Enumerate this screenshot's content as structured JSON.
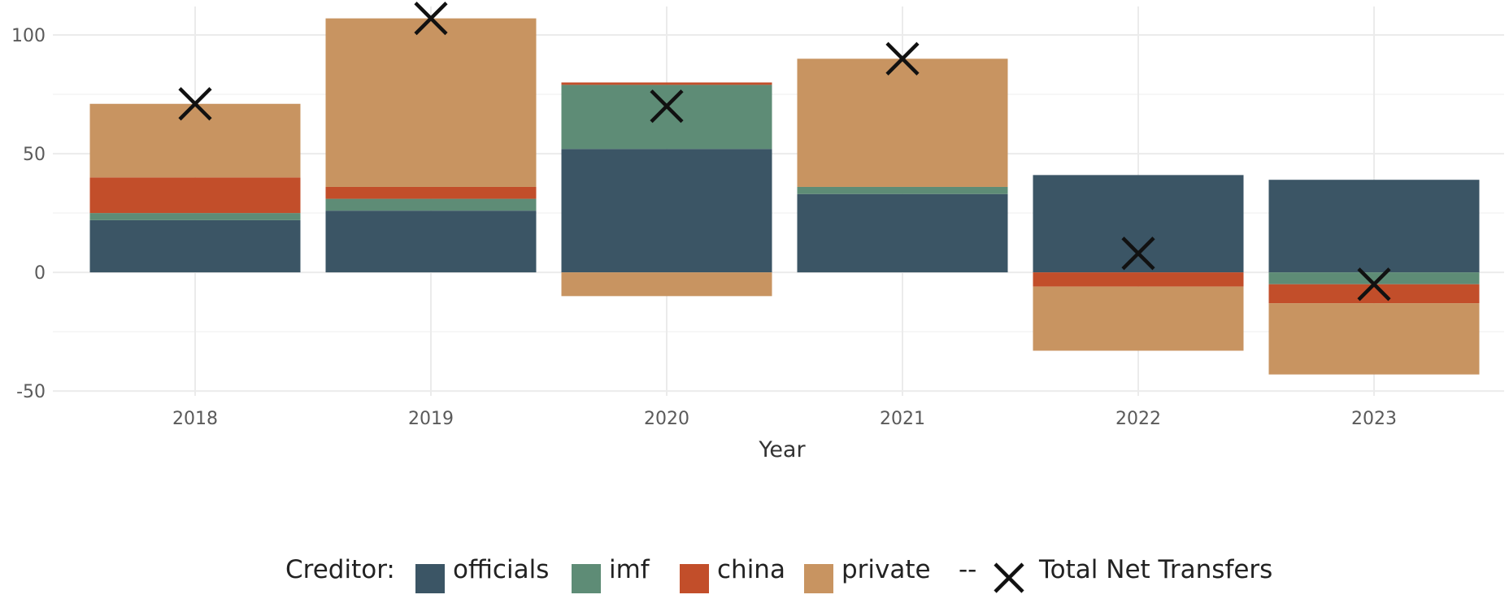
{
  "chart_data": {
    "type": "bar",
    "stacked": true,
    "xlabel": "Year",
    "ylabel": "",
    "categories": [
      "2018",
      "2019",
      "2020",
      "2021",
      "2022",
      "2023"
    ],
    "ylim": [
      -52,
      112
    ],
    "yticks": [
      -50,
      0,
      50,
      100
    ],
    "grid": true,
    "legend_position": "bottom",
    "legend_title": "Creditor:",
    "series": [
      {
        "name": "officials",
        "color": "#3b5565",
        "values": [
          22,
          26,
          52,
          33,
          41,
          39
        ]
      },
      {
        "name": "imf",
        "color": "#5e8c76",
        "values": [
          3,
          5,
          27,
          3,
          0,
          -5
        ]
      },
      {
        "name": "china",
        "color": "#c24e2a",
        "values": [
          15,
          5,
          1,
          0,
          -6,
          -8
        ]
      },
      {
        "name": "private",
        "color": "#c89461",
        "values": [
          31,
          71,
          -10,
          54,
          -27,
          -30
        ]
      }
    ],
    "total": {
      "name": "Total Net Transfers",
      "legend_prefix": "--",
      "marker": "x",
      "values": [
        71,
        107,
        70,
        90,
        8,
        -5
      ]
    }
  }
}
